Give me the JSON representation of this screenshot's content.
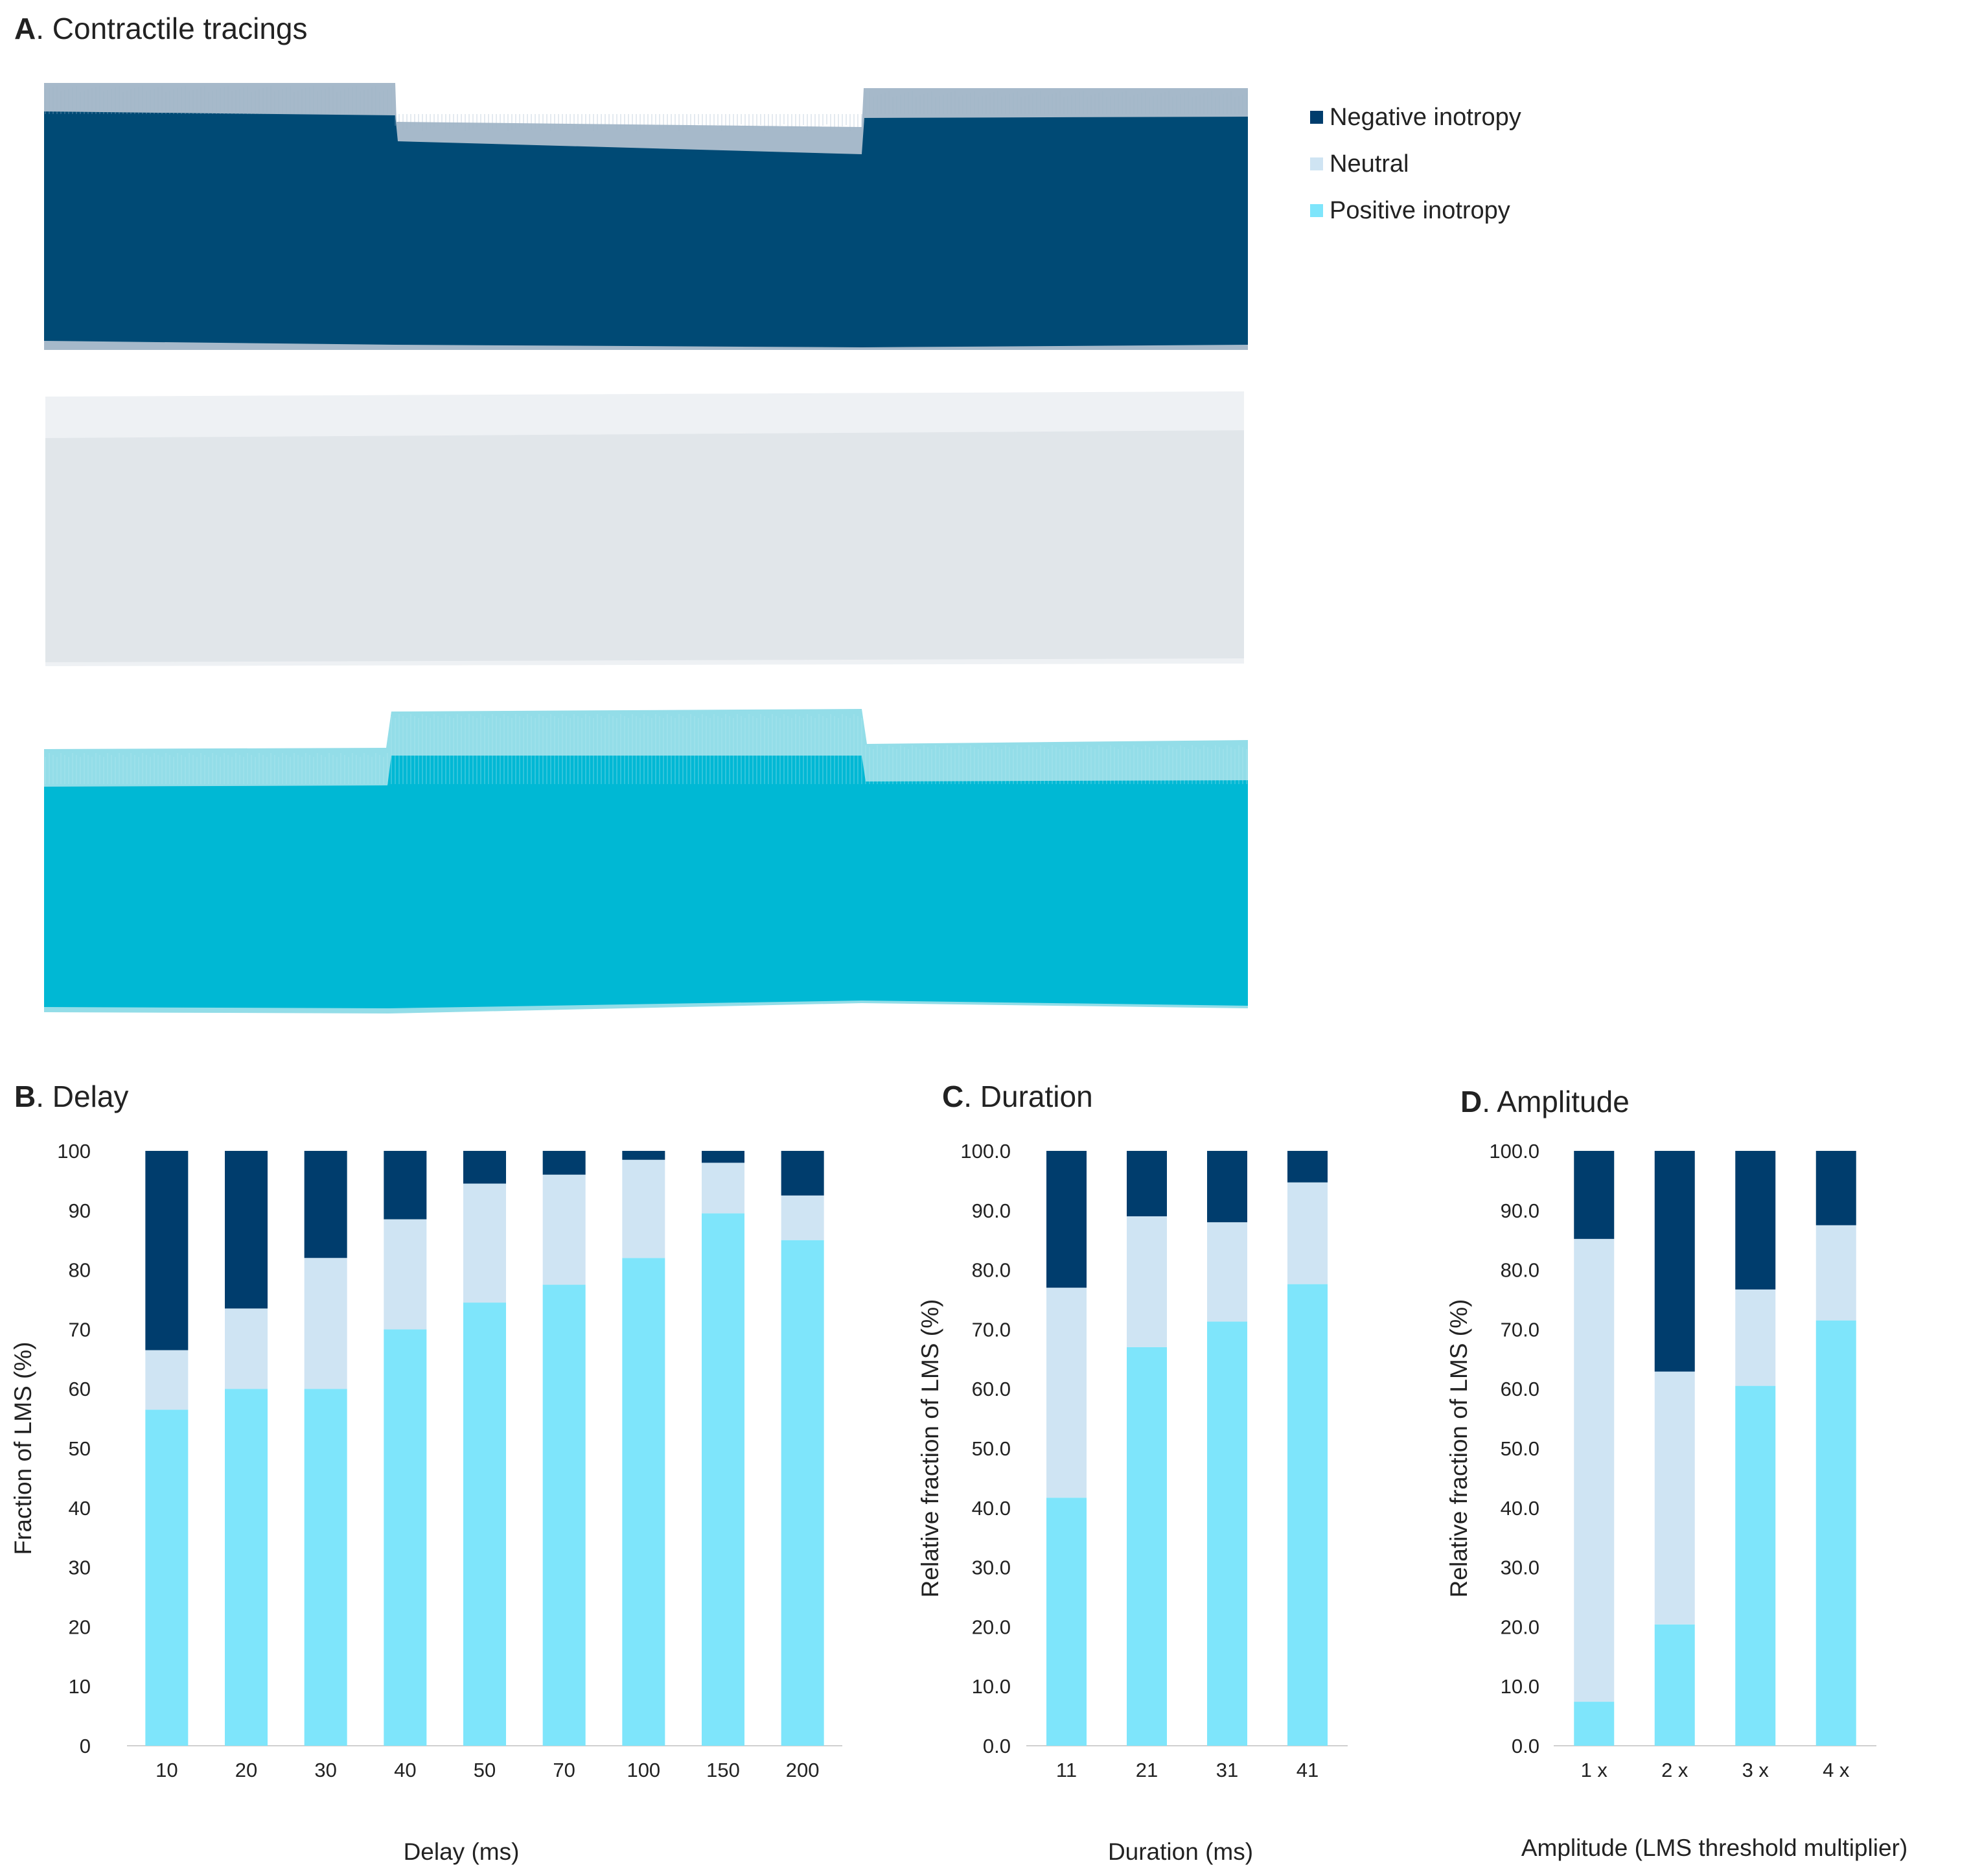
{
  "colors": {
    "negative": "#003D6D",
    "neutral": "#CFE4F3",
    "positive": "#7EE5FB",
    "trace_negative": "#004A75",
    "trace_neutral": "#E1E6EA",
    "trace_positive": "#00B8D4"
  },
  "panel_a": {
    "letter": "A",
    "title": ". Contractile tracings",
    "legend": [
      {
        "key": "negative",
        "label": "Negative inotropy"
      },
      {
        "key": "neutral",
        "label": "Neutral"
      },
      {
        "key": "positive",
        "label": "Positive inotropy"
      }
    ]
  },
  "chart_data": [
    {
      "type": "bar",
      "stacked": true,
      "letter": "B",
      "title": ". Delay",
      "xlabel": "Delay (ms)",
      "ylabel": "Fraction of LMS (%)",
      "ylim": [
        0,
        100
      ],
      "yticks": [
        "0",
        "10",
        "20",
        "30",
        "40",
        "50",
        "60",
        "70",
        "80",
        "90",
        "100"
      ],
      "categories": [
        "10",
        "20",
        "30",
        "40",
        "50",
        "70",
        "100",
        "150",
        "200"
      ],
      "series": [
        {
          "key": "positive",
          "name": "Positive inotropy",
          "values": [
            56.5,
            60.0,
            60.0,
            70.0,
            74.5,
            77.5,
            82.0,
            89.5,
            85.0
          ]
        },
        {
          "key": "neutral",
          "name": "Neutral",
          "values": [
            10.0,
            13.5,
            22.0,
            18.5,
            20.0,
            18.5,
            16.5,
            8.5,
            7.5
          ]
        },
        {
          "key": "negative",
          "name": "Negative inotropy",
          "values": [
            33.5,
            26.5,
            18.0,
            11.5,
            5.5,
            4.0,
            1.5,
            2.0,
            7.5
          ]
        }
      ]
    },
    {
      "type": "bar",
      "stacked": true,
      "letter": "C",
      "title": ". Duration",
      "xlabel": "Duration (ms)",
      "ylabel": "Relative fraction of LMS (%)",
      "ylim": [
        0,
        100
      ],
      "yticks": [
        "0.0",
        "10.0",
        "20.0",
        "30.0",
        "40.0",
        "50.0",
        "60.0",
        "70.0",
        "80.0",
        "90.0",
        "100.0"
      ],
      "categories": [
        "11",
        "21",
        "31",
        "41"
      ],
      "series": [
        {
          "key": "positive",
          "name": "Positive inotropy",
          "values": [
            41.7,
            67.0,
            71.3,
            77.6
          ]
        },
        {
          "key": "neutral",
          "name": "Neutral",
          "values": [
            35.3,
            22.0,
            16.7,
            17.1
          ]
        },
        {
          "key": "negative",
          "name": "Negative inotropy",
          "values": [
            23.0,
            11.0,
            12.0,
            5.3
          ]
        }
      ]
    },
    {
      "type": "bar",
      "stacked": true,
      "letter": "D",
      "title": ". Amplitude",
      "xlabel": "Amplitude (LMS threshold multiplier)",
      "ylabel": "Relative fraction of LMS (%)",
      "ylim": [
        0,
        100
      ],
      "yticks": [
        "0.0",
        "10.0",
        "20.0",
        "30.0",
        "40.0",
        "50.0",
        "60.0",
        "70.0",
        "80.0",
        "90.0",
        "100.0"
      ],
      "categories": [
        "1 x",
        "2 x",
        "3 x",
        "4 x"
      ],
      "series": [
        {
          "key": "positive",
          "name": "Positive inotropy",
          "values": [
            7.4,
            20.4,
            60.5,
            71.5
          ]
        },
        {
          "key": "neutral",
          "name": "Neutral",
          "values": [
            77.8,
            42.5,
            16.2,
            16.0
          ]
        },
        {
          "key": "negative",
          "name": "Negative inotropy",
          "values": [
            14.8,
            37.1,
            23.3,
            12.5
          ]
        }
      ]
    }
  ]
}
